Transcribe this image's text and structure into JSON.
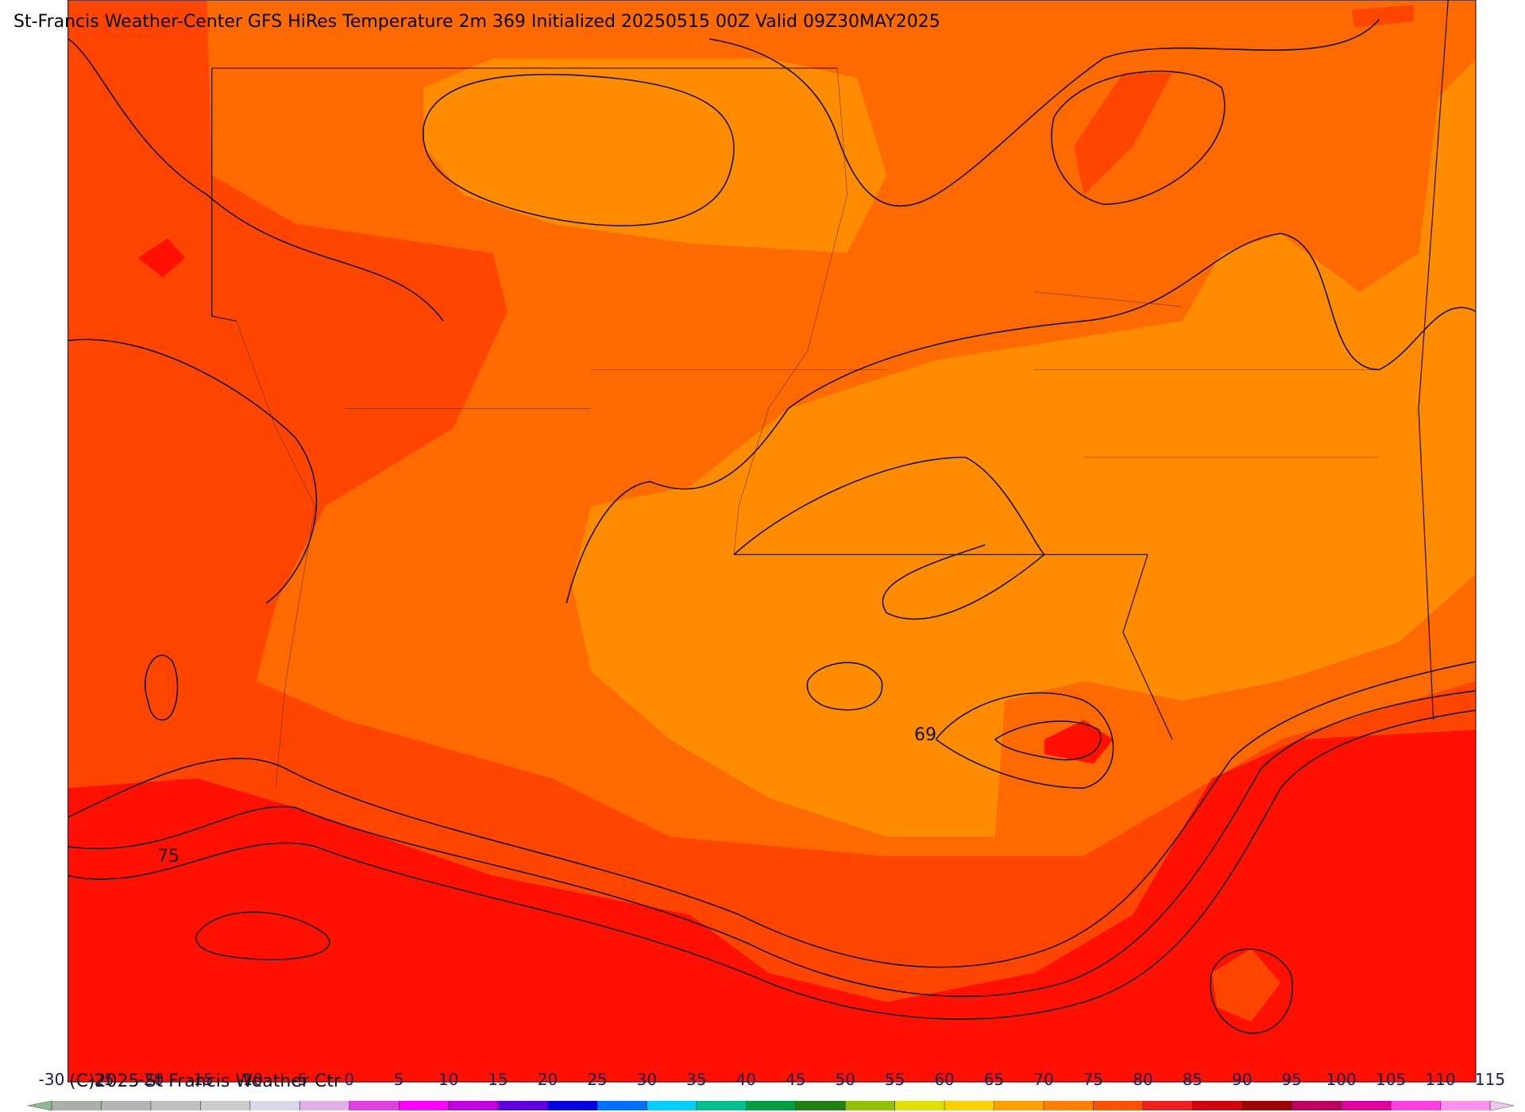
{
  "header": {
    "title": "St-Francis Weather-Center GFS HiRes Temperature 2m  369 Initialized 20250515 00Z Valid 09Z30MAY2025"
  },
  "map": {
    "contour_labels": [
      "69",
      "75"
    ]
  },
  "footer": {
    "copyright": "(C)2025 St Francis Weather Ctr"
  },
  "colorbar": {
    "ticks": [
      -30,
      -25,
      -20,
      -15,
      -10,
      -5,
      0,
      5,
      10,
      15,
      20,
      25,
      30,
      35,
      40,
      45,
      50,
      55,
      60,
      65,
      70,
      75,
      80,
      85,
      90,
      95,
      100,
      105,
      110,
      115
    ],
    "colors": [
      "#a8b0a8",
      "#b4b4b4",
      "#c0c0c0",
      "#cccccc",
      "#d8d8e8",
      "#e0b0e8",
      "#e040e0",
      "#ff00ff",
      "#c000e0",
      "#6000e0",
      "#0000e0",
      "#0070ff",
      "#00d0ff",
      "#00c090",
      "#00a040",
      "#208010",
      "#90c000",
      "#e0e000",
      "#ffd000",
      "#ffa000",
      "#ff8000",
      "#ff5000",
      "#f02020",
      "#d00010",
      "#a00000",
      "#c00060",
      "#e000a0",
      "#ff40e0",
      "#ff90f0"
    ],
    "under_color": "#8fbc8f",
    "over_color": "#f0c8f0"
  }
}
